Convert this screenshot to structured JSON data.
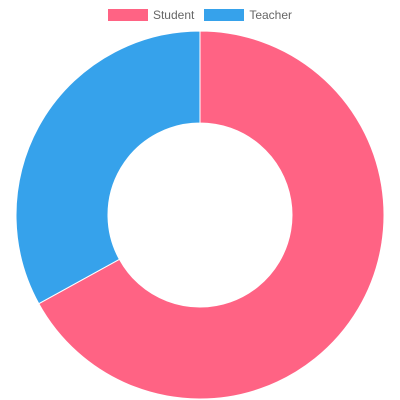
{
  "chart_data": {
    "type": "pie",
    "style": "doughnut",
    "title": "",
    "legend": {
      "position": "top"
    },
    "series": [
      {
        "name": "Student",
        "value": 67,
        "color": "#FF6384"
      },
      {
        "name": "Teacher",
        "value": 33,
        "color": "#36A2EB"
      }
    ]
  }
}
